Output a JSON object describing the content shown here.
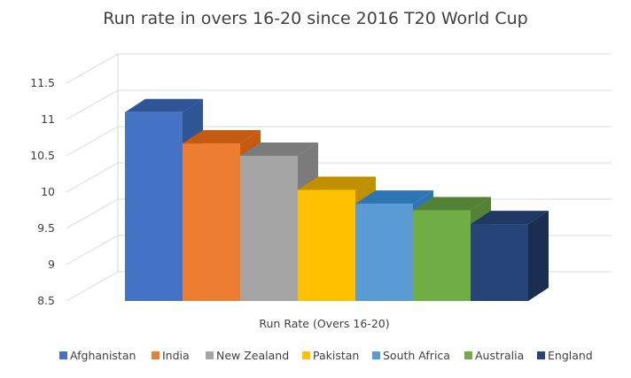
{
  "chart_data": {
    "type": "bar",
    "style": "3d-clustered-column",
    "title": "Run rate in overs 16-20 since 2016 T20 World Cup",
    "xlabel": "Run Rate (Overs 16-20)",
    "ylabel": "",
    "ylim": [
      8.5,
      11.5
    ],
    "yticks": [
      "8.5",
      "9",
      "9.5",
      "10",
      "10.5",
      "11",
      "11.5"
    ],
    "grid": true,
    "legend_position": "bottom",
    "categories": [
      "Run Rate (Overs 16-20)"
    ],
    "series": [
      {
        "name": "Afghanistan",
        "values": [
          11.1
        ],
        "color": "#4472C4",
        "top_color": "#2F5597",
        "side_color": "#2F5597"
      },
      {
        "name": "India",
        "values": [
          10.67
        ],
        "color": "#ED7D31",
        "top_color": "#C55A11",
        "side_color": "#C55A11"
      },
      {
        "name": "New Zealand",
        "values": [
          10.5
        ],
        "color": "#A5A5A5",
        "top_color": "#7B7B7B",
        "side_color": "#7B7B7B"
      },
      {
        "name": "Pakistan",
        "values": [
          10.03
        ],
        "color": "#FFC000",
        "top_color": "#BF9000",
        "side_color": "#BF9000"
      },
      {
        "name": "South Africa",
        "values": [
          9.84
        ],
        "color": "#5B9BD5",
        "top_color": "#2E75B6",
        "side_color": "#2E75B6"
      },
      {
        "name": "Australia",
        "values": [
          9.75
        ],
        "color": "#70AD47",
        "top_color": "#538135",
        "side_color": "#538135"
      },
      {
        "name": "England",
        "values": [
          9.56
        ],
        "color": "#264478",
        "top_color": "#1F3864",
        "side_color": "#1A2E52"
      }
    ]
  }
}
